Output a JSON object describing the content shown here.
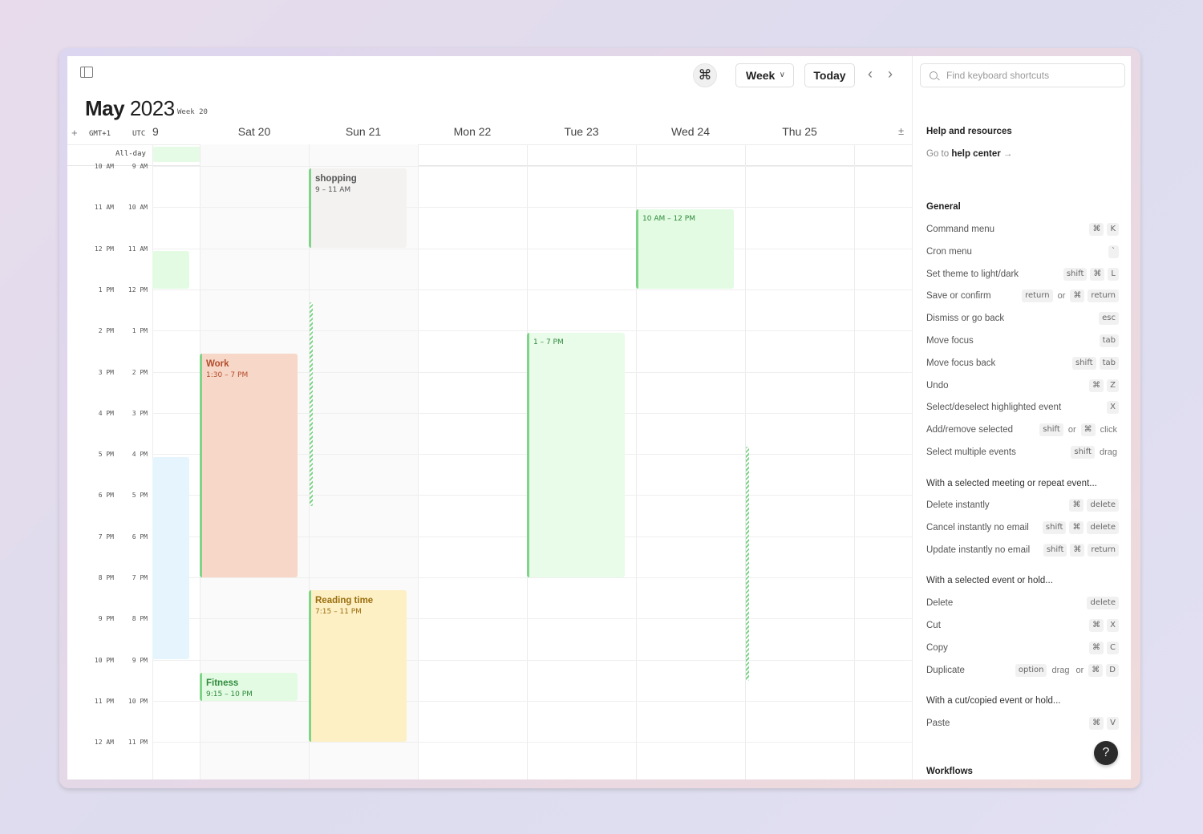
{
  "header": {
    "title_month": "May",
    "title_year": "2023",
    "week_label": "Week 20",
    "command_icon": "⌘",
    "view_label": "Week",
    "today_label": "Today",
    "prev_icon": "‹",
    "next_icon": "›"
  },
  "columns": {
    "add_tz": "+",
    "tz_local": "GMT+1",
    "tz_other": "UTC",
    "days": [
      "9",
      "Sat 20",
      "Sun 21",
      "Mon 22",
      "Tue 23",
      "Wed 24",
      "Thu 25"
    ],
    "plusminus": "±",
    "allday_label": "All-day"
  },
  "times": {
    "local": [
      "10 AM",
      "11 AM",
      "12 PM",
      "1 PM",
      "2 PM",
      "3 PM",
      "4 PM",
      "5 PM",
      "6 PM",
      "7 PM",
      "8 PM",
      "9 PM",
      "10 PM",
      "11 PM",
      "12 AM"
    ],
    "utc": [
      "9 AM",
      "10 AM",
      "11 AM",
      "12 PM",
      "1 PM",
      "2 PM",
      "3 PM",
      "4 PM",
      "5 PM",
      "6 PM",
      "7 PM",
      "8 PM",
      "9 PM",
      "10 PM",
      "11 PM"
    ]
  },
  "events": {
    "shopping": {
      "title": "shopping",
      "time": "9 – 11 AM"
    },
    "wed_block": {
      "time": "10 AM – 12 PM"
    },
    "tue_block": {
      "time": "1 – 7 PM"
    },
    "work": {
      "title": "Work",
      "time": "1:30 – 7 PM"
    },
    "reading": {
      "title": "Reading time",
      "time": "7:15 – 11 PM"
    },
    "fitness": {
      "title": "Fitness",
      "time": "9:15 – 10 PM"
    }
  },
  "colors": {
    "green_bar": "#7fd48a",
    "work_bg": "#f7d8c8",
    "work_text": "#b34b2c",
    "reading_bg": "#fdf0c4",
    "reading_text": "#9a6e10",
    "fitness_bg": "#e3fbe3",
    "fitness_text": "#2f8a3c",
    "shopping_bg": "#f3f2f1"
  },
  "panel": {
    "search_placeholder": "Find keyboard shortcuts",
    "help_title": "Help and resources",
    "help_link_prefix": "Go to",
    "help_link": "help center",
    "help_arrow": "→",
    "general_title": "General",
    "general": [
      {
        "label": "Command menu",
        "keys": [
          "⌘",
          "K"
        ]
      },
      {
        "label": "Cron menu",
        "keys": [
          "`"
        ]
      },
      {
        "label": "Set theme to light/dark",
        "keys": [
          "shift",
          "⌘",
          "L"
        ]
      },
      {
        "label": "Save or confirm",
        "keys": [
          "return",
          "or",
          "⌘",
          "return"
        ]
      },
      {
        "label": "Dismiss or go back",
        "keys": [
          "esc"
        ]
      },
      {
        "label": "Move focus",
        "keys": [
          "tab"
        ]
      },
      {
        "label": "Move focus back",
        "keys": [
          "shift",
          "tab"
        ]
      },
      {
        "label": "Undo",
        "keys": [
          "⌘",
          "Z"
        ]
      },
      {
        "label": "Select/deselect highlighted event",
        "keys": [
          "X"
        ]
      },
      {
        "label": "Add/remove selected",
        "keys": [
          "shift",
          "or",
          "⌘",
          "click"
        ]
      },
      {
        "label": "Select multiple events",
        "keys": [
          "shift",
          "drag"
        ]
      }
    ],
    "meeting_title": "With a selected meeting or repeat event...",
    "meeting": [
      {
        "label": "Delete instantly",
        "keys": [
          "⌘",
          "delete"
        ]
      },
      {
        "label": "Cancel instantly no email",
        "keys": [
          "shift",
          "⌘",
          "delete"
        ]
      },
      {
        "label": "Update instantly no email",
        "keys": [
          "shift",
          "⌘",
          "return"
        ]
      }
    ],
    "event_title": "With a selected event or hold...",
    "event": [
      {
        "label": "Delete",
        "keys": [
          "delete"
        ]
      },
      {
        "label": "Cut",
        "keys": [
          "⌘",
          "X"
        ]
      },
      {
        "label": "Copy",
        "keys": [
          "⌘",
          "C"
        ]
      },
      {
        "label": "Duplicate",
        "keys": [
          "option",
          "drag",
          "or",
          "⌘",
          "D"
        ]
      }
    ],
    "cut_title": "With a cut/copied event or hold...",
    "cut": [
      {
        "label": "Paste",
        "keys": [
          "⌘",
          "V"
        ]
      }
    ],
    "workflows_title": "Workflows",
    "help_button": "?"
  }
}
